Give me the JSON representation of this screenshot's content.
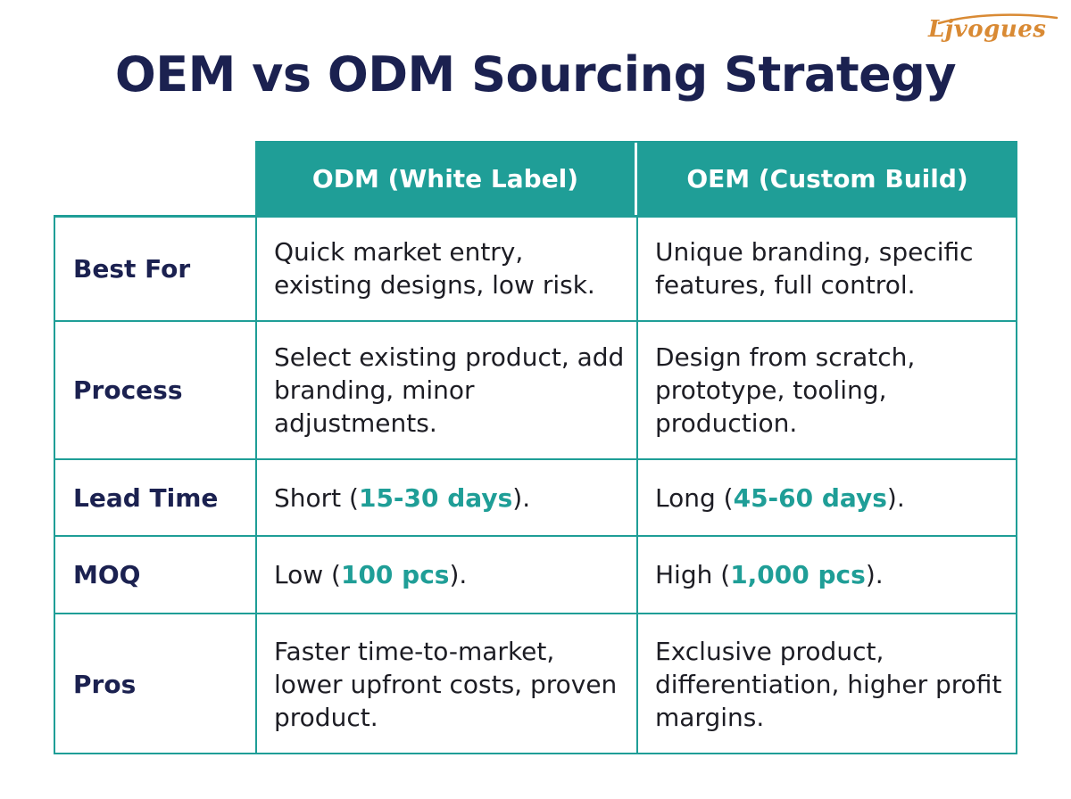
{
  "brand": {
    "logo_text": "Ljvogues",
    "accent_color": "#1f9e97",
    "logo_color": "#d98a34"
  },
  "title": "OEM vs ODM Sourcing Strategy",
  "table": {
    "columns": [
      "ODM (White Label)",
      "OEM (Custom Build)"
    ],
    "rows": [
      {
        "label": "Best For",
        "odm": "Quick market entry, existing designs, low risk.",
        "oem": "Unique branding, specific features, full control."
      },
      {
        "label": "Process",
        "odm": "Select existing product, add branding, minor adjustments.",
        "oem": "Design from scratch, prototype, tooling, production."
      },
      {
        "label": "Lead Time",
        "odm": {
          "pre": "Short (",
          "hl": "15-30 days",
          "post": ")."
        },
        "oem": {
          "pre": "Long (",
          "hl": "45-60 days",
          "post": ")."
        }
      },
      {
        "label": "MOQ",
        "odm": {
          "pre": "Low (",
          "hl": "100 pcs",
          "post": ")."
        },
        "oem": {
          "pre": "High (",
          "hl": "1,000 pcs",
          "post": ")."
        }
      },
      {
        "label": "Pros",
        "odm": "Faster time-to-market, lower upfront costs, proven product.",
        "oem": "Exclusive product, differentiation, higher profit margins."
      }
    ]
  }
}
